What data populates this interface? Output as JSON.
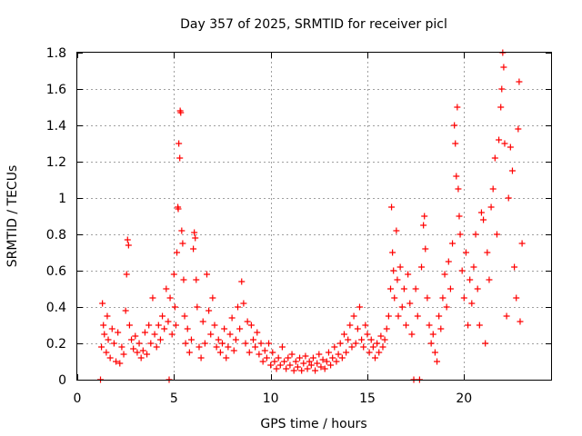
{
  "chart_data": {
    "type": "scatter",
    "title": "Day 357 of 2025, SRMTID for receiver picl",
    "xlabel": "GPS time / hours",
    "ylabel": "SRMTID / TECUs",
    "xlim": [
      0,
      24.5
    ],
    "ylim": [
      0,
      1.8
    ],
    "xticks": [
      0,
      5,
      10,
      15,
      20
    ],
    "xtick_labels": [
      "0",
      "5",
      "10",
      "15",
      "20"
    ],
    "yticks": [
      0,
      0.2,
      0.4,
      0.6,
      0.8,
      1,
      1.2,
      1.4,
      1.6,
      1.8
    ],
    "ytick_labels": [
      "0",
      "0.2",
      "0.4",
      "0.6",
      "0.8",
      "1",
      "1.2",
      "1.4",
      "1.6",
      "1.8"
    ],
    "grid": true,
    "marker": "+",
    "series": [
      {
        "name": "SRMTID",
        "color": "#ff0000",
        "points": [
          [
            1.2,
            0.0
          ],
          [
            1.25,
            0.18
          ],
          [
            1.3,
            0.42
          ],
          [
            1.35,
            0.3
          ],
          [
            1.4,
            0.25
          ],
          [
            1.5,
            0.15
          ],
          [
            1.55,
            0.35
          ],
          [
            1.6,
            0.22
          ],
          [
            1.7,
            0.12
          ],
          [
            1.8,
            0.28
          ],
          [
            1.9,
            0.2
          ],
          [
            2.0,
            0.1
          ],
          [
            2.1,
            0.26
          ],
          [
            2.2,
            0.09
          ],
          [
            2.3,
            0.18
          ],
          [
            2.4,
            0.14
          ],
          [
            2.5,
            0.38
          ],
          [
            2.55,
            0.58
          ],
          [
            2.6,
            0.77
          ],
          [
            2.65,
            0.74
          ],
          [
            2.7,
            0.3
          ],
          [
            2.8,
            0.22
          ],
          [
            2.9,
            0.17
          ],
          [
            3.0,
            0.24
          ],
          [
            3.1,
            0.15
          ],
          [
            3.2,
            0.2
          ],
          [
            3.3,
            0.12
          ],
          [
            3.4,
            0.16
          ],
          [
            3.5,
            0.26
          ],
          [
            3.6,
            0.14
          ],
          [
            3.7,
            0.3
          ],
          [
            3.8,
            0.2
          ],
          [
            3.9,
            0.45
          ],
          [
            4.0,
            0.25
          ],
          [
            4.1,
            0.18
          ],
          [
            4.2,
            0.3
          ],
          [
            4.3,
            0.22
          ],
          [
            4.4,
            0.35
          ],
          [
            4.5,
            0.28
          ],
          [
            4.6,
            0.5
          ],
          [
            4.7,
            0.32
          ],
          [
            4.75,
            0.0
          ],
          [
            4.8,
            0.45
          ],
          [
            4.9,
            0.25
          ],
          [
            5.0,
            0.58
          ],
          [
            5.05,
            0.4
          ],
          [
            5.1,
            0.3
          ],
          [
            5.15,
            0.7
          ],
          [
            5.2,
            0.95
          ],
          [
            5.22,
            0.94
          ],
          [
            5.25,
            1.3
          ],
          [
            5.3,
            1.22
          ],
          [
            5.32,
            1.48
          ],
          [
            5.35,
            1.47
          ],
          [
            5.4,
            0.82
          ],
          [
            5.45,
            0.75
          ],
          [
            5.5,
            0.55
          ],
          [
            5.55,
            0.35
          ],
          [
            5.6,
            0.2
          ],
          [
            5.7,
            0.28
          ],
          [
            5.8,
            0.15
          ],
          [
            5.9,
            0.22
          ],
          [
            6.0,
            0.72
          ],
          [
            6.05,
            0.81
          ],
          [
            6.1,
            0.78
          ],
          [
            6.15,
            0.55
          ],
          [
            6.2,
            0.4
          ],
          [
            6.3,
            0.18
          ],
          [
            6.4,
            0.12
          ],
          [
            6.5,
            0.32
          ],
          [
            6.6,
            0.2
          ],
          [
            6.7,
            0.58
          ],
          [
            6.8,
            0.38
          ],
          [
            6.9,
            0.25
          ],
          [
            7.0,
            0.45
          ],
          [
            7.1,
            0.3
          ],
          [
            7.2,
            0.18
          ],
          [
            7.3,
            0.22
          ],
          [
            7.4,
            0.15
          ],
          [
            7.5,
            0.2
          ],
          [
            7.6,
            0.28
          ],
          [
            7.7,
            0.12
          ],
          [
            7.8,
            0.18
          ],
          [
            7.9,
            0.25
          ],
          [
            8.0,
            0.34
          ],
          [
            8.1,
            0.16
          ],
          [
            8.2,
            0.22
          ],
          [
            8.3,
            0.4
          ],
          [
            8.4,
            0.28
          ],
          [
            8.5,
            0.54
          ],
          [
            8.6,
            0.42
          ],
          [
            8.7,
            0.2
          ],
          [
            8.8,
            0.32
          ],
          [
            8.9,
            0.15
          ],
          [
            9.0,
            0.3
          ],
          [
            9.1,
            0.22
          ],
          [
            9.2,
            0.18
          ],
          [
            9.3,
            0.26
          ],
          [
            9.4,
            0.14
          ],
          [
            9.5,
            0.2
          ],
          [
            9.6,
            0.1
          ],
          [
            9.7,
            0.16
          ],
          [
            9.8,
            0.12
          ],
          [
            9.9,
            0.2
          ],
          [
            10.0,
            0.08
          ],
          [
            10.1,
            0.15
          ],
          [
            10.2,
            0.1
          ],
          [
            10.3,
            0.06
          ],
          [
            10.4,
            0.12
          ],
          [
            10.5,
            0.08
          ],
          [
            10.6,
            0.18
          ],
          [
            10.7,
            0.1
          ],
          [
            10.8,
            0.06
          ],
          [
            10.9,
            0.12
          ],
          [
            11.0,
            0.08
          ],
          [
            11.1,
            0.14
          ],
          [
            11.2,
            0.05
          ],
          [
            11.3,
            0.1
          ],
          [
            11.4,
            0.07
          ],
          [
            11.5,
            0.12
          ],
          [
            11.6,
            0.05
          ],
          [
            11.7,
            0.09
          ],
          [
            11.8,
            0.13
          ],
          [
            11.9,
            0.06
          ],
          [
            12.0,
            0.1
          ],
          [
            12.1,
            0.08
          ],
          [
            12.2,
            0.12
          ],
          [
            12.3,
            0.05
          ],
          [
            12.4,
            0.09
          ],
          [
            12.5,
            0.14
          ],
          [
            12.6,
            0.07
          ],
          [
            12.7,
            0.11
          ],
          [
            12.8,
            0.06
          ],
          [
            12.9,
            0.1
          ],
          [
            13.0,
            0.15
          ],
          [
            13.1,
            0.08
          ],
          [
            13.2,
            0.12
          ],
          [
            13.3,
            0.18
          ],
          [
            13.4,
            0.1
          ],
          [
            13.5,
            0.14
          ],
          [
            13.6,
            0.2
          ],
          [
            13.7,
            0.12
          ],
          [
            13.8,
            0.25
          ],
          [
            13.9,
            0.15
          ],
          [
            14.0,
            0.22
          ],
          [
            14.1,
            0.3
          ],
          [
            14.2,
            0.18
          ],
          [
            14.3,
            0.35
          ],
          [
            14.4,
            0.2
          ],
          [
            14.5,
            0.28
          ],
          [
            14.6,
            0.4
          ],
          [
            14.7,
            0.22
          ],
          [
            14.8,
            0.18
          ],
          [
            14.9,
            0.3
          ],
          [
            15.0,
            0.25
          ],
          [
            15.1,
            0.15
          ],
          [
            15.2,
            0.22
          ],
          [
            15.3,
            0.18
          ],
          [
            15.4,
            0.12
          ],
          [
            15.5,
            0.2
          ],
          [
            15.6,
            0.15
          ],
          [
            15.7,
            0.24
          ],
          [
            15.8,
            0.18
          ],
          [
            15.9,
            0.22
          ],
          [
            16.0,
            0.28
          ],
          [
            16.1,
            0.35
          ],
          [
            16.2,
            0.5
          ],
          [
            16.25,
            0.95
          ],
          [
            16.3,
            0.7
          ],
          [
            16.35,
            0.6
          ],
          [
            16.4,
            0.45
          ],
          [
            16.5,
            0.82
          ],
          [
            16.55,
            0.55
          ],
          [
            16.6,
            0.35
          ],
          [
            16.7,
            0.62
          ],
          [
            16.8,
            0.4
          ],
          [
            16.9,
            0.5
          ],
          [
            17.0,
            0.3
          ],
          [
            17.1,
            0.58
          ],
          [
            17.2,
            0.42
          ],
          [
            17.3,
            0.25
          ],
          [
            17.4,
            0.0
          ],
          [
            17.5,
            0.5
          ],
          [
            17.6,
            0.35
          ],
          [
            17.7,
            0.0
          ],
          [
            17.8,
            0.62
          ],
          [
            17.9,
            0.85
          ],
          [
            17.95,
            0.9
          ],
          [
            18.0,
            0.72
          ],
          [
            18.1,
            0.45
          ],
          [
            18.2,
            0.3
          ],
          [
            18.3,
            0.2
          ],
          [
            18.4,
            0.25
          ],
          [
            18.5,
            0.15
          ],
          [
            18.6,
            0.1
          ],
          [
            18.7,
            0.35
          ],
          [
            18.8,
            0.28
          ],
          [
            18.9,
            0.45
          ],
          [
            19.0,
            0.58
          ],
          [
            19.1,
            0.4
          ],
          [
            19.2,
            0.65
          ],
          [
            19.3,
            0.5
          ],
          [
            19.4,
            0.75
          ],
          [
            19.5,
            1.4
          ],
          [
            19.55,
            1.3
          ],
          [
            19.6,
            1.12
          ],
          [
            19.65,
            1.5
          ],
          [
            19.7,
            1.05
          ],
          [
            19.75,
            0.9
          ],
          [
            19.8,
            0.8
          ],
          [
            19.9,
            0.6
          ],
          [
            20.0,
            0.45
          ],
          [
            20.1,
            0.7
          ],
          [
            20.2,
            0.3
          ],
          [
            20.3,
            0.55
          ],
          [
            20.4,
            0.42
          ],
          [
            20.5,
            0.62
          ],
          [
            20.6,
            0.8
          ],
          [
            20.7,
            0.5
          ],
          [
            20.8,
            0.3
          ],
          [
            20.9,
            0.92
          ],
          [
            21.0,
            0.88
          ],
          [
            21.1,
            0.2
          ],
          [
            21.2,
            0.7
          ],
          [
            21.3,
            0.55
          ],
          [
            21.4,
            0.95
          ],
          [
            21.5,
            1.05
          ],
          [
            21.6,
            1.22
          ],
          [
            21.7,
            0.8
          ],
          [
            21.8,
            1.32
          ],
          [
            21.9,
            1.5
          ],
          [
            21.95,
            1.6
          ],
          [
            22.0,
            1.8
          ],
          [
            22.05,
            1.72
          ],
          [
            22.1,
            1.3
          ],
          [
            22.2,
            0.35
          ],
          [
            22.3,
            1.0
          ],
          [
            22.4,
            1.28
          ],
          [
            22.5,
            1.15
          ],
          [
            22.6,
            0.62
          ],
          [
            22.7,
            0.45
          ],
          [
            22.8,
            1.38
          ],
          [
            22.85,
            1.64
          ],
          [
            22.9,
            0.32
          ],
          [
            23.0,
            0.75
          ]
        ]
      }
    ]
  }
}
